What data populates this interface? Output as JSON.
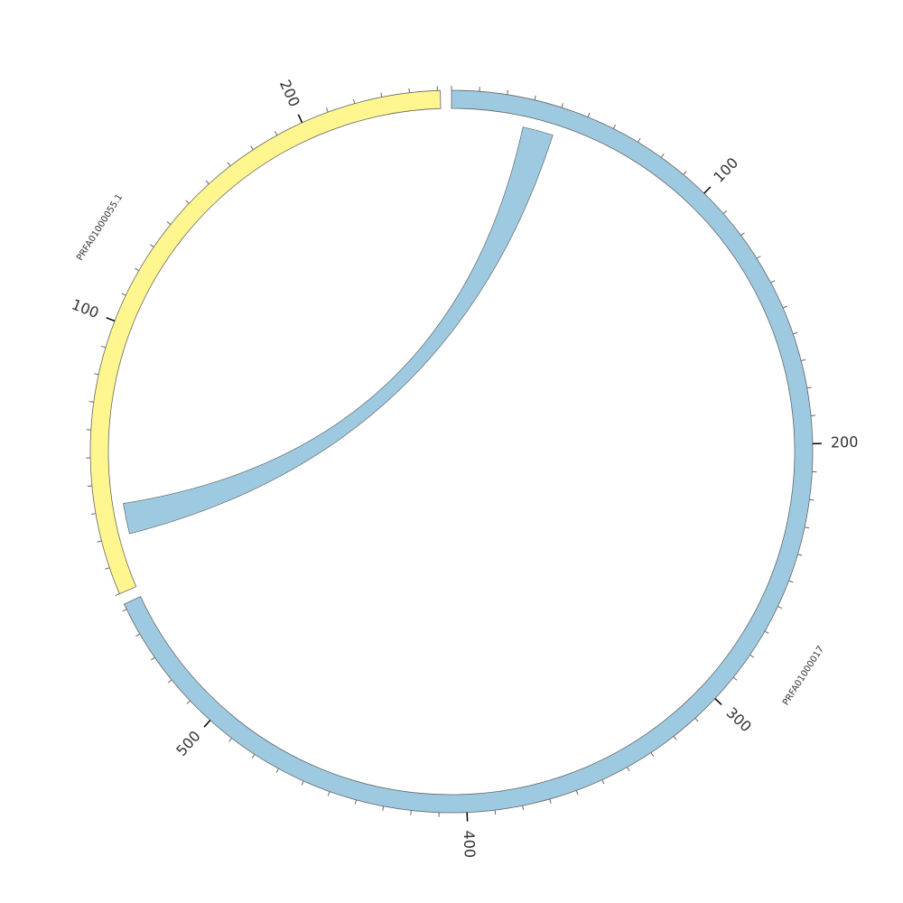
{
  "chart_data": {
    "type": "circos",
    "ideograms": [
      {
        "name": "PRFA01000017",
        "length": 552,
        "color": "#9ecae1",
        "ticks": [
          100,
          200,
          300,
          400,
          500
        ]
      },
      {
        "name": "PRFA01000055.1",
        "length": 251,
        "color": "#fff68f",
        "ticks": [
          100,
          200
        ]
      }
    ],
    "minor_tick_step": 10,
    "links": [
      {
        "source": {
          "ideogram": 0,
          "start": 28,
          "end": 40
        },
        "target": {
          "ideogram": 1,
          "start": 20,
          "end": 32
        },
        "color": "#9ecae1"
      }
    ]
  }
}
